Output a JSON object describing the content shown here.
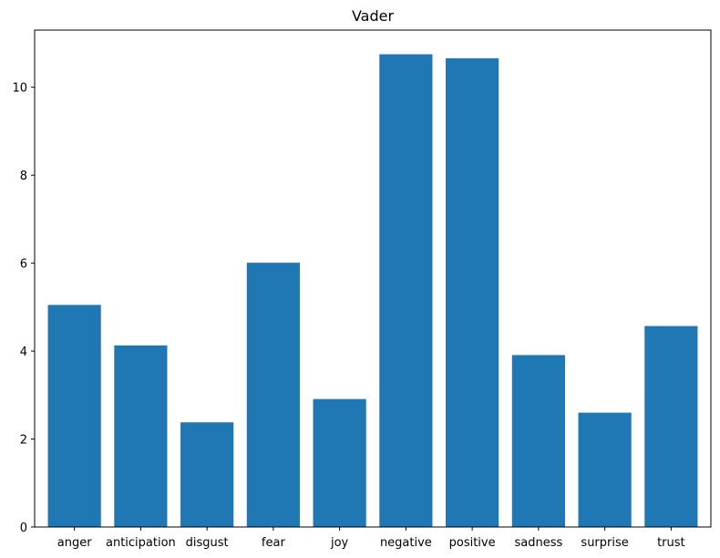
{
  "chart_data": {
    "type": "bar",
    "title": "Vader",
    "xlabel": "",
    "ylabel": "",
    "categories": [
      "anger",
      "anticipation",
      "disgust",
      "fear",
      "joy",
      "negative",
      "positive",
      "sadness",
      "surprise",
      "trust"
    ],
    "values": [
      5.05,
      4.13,
      2.38,
      6.01,
      2.91,
      10.75,
      10.66,
      3.91,
      2.6,
      4.57
    ],
    "ylim": [
      0,
      11.3
    ],
    "yticks": [
      0,
      2,
      4,
      6,
      8,
      10
    ],
    "grid": false,
    "bar_color": "#1f77b4"
  }
}
